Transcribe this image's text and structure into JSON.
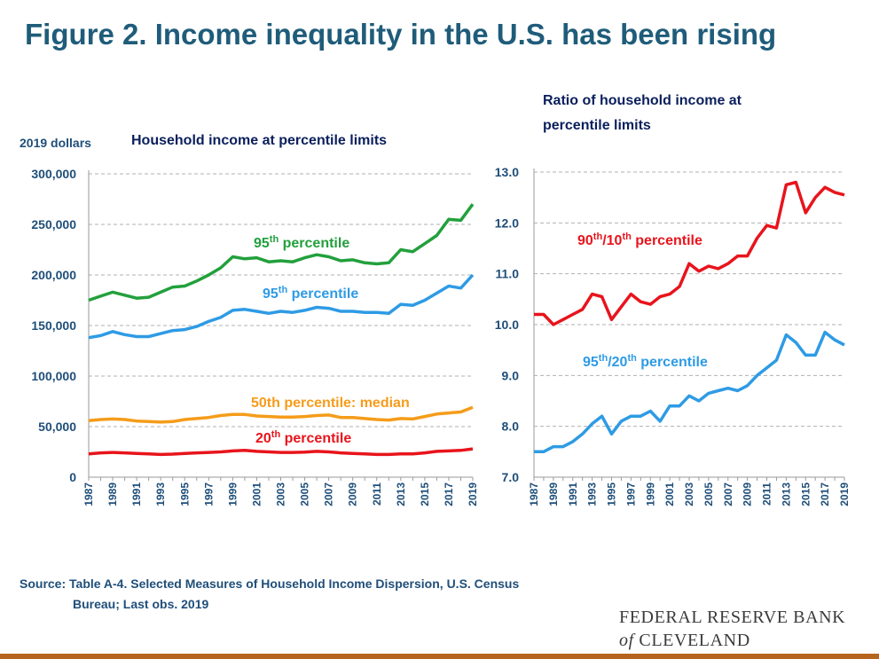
{
  "title": "Figure 2. Income inequality in the U.S. has been rising",
  "source_line1": "Source: Table A-4. Selected Measures of Household Income Dispersion, U.S. Census",
  "source_line2": "Bureau; Last obs. 2019",
  "logo": {
    "line1": "FEDERAL RESERVE BANK",
    "of": "of",
    "city": "CLEVELAND"
  },
  "chart_data": [
    {
      "type": "line",
      "title": "Household income at percentile limits",
      "ylabel": "2019 dollars",
      "ylim": [
        0,
        300000
      ],
      "yticks": [
        "0",
        "50,000",
        "100,000",
        "150,000",
        "200,000",
        "250,000",
        "300,000"
      ],
      "x": [
        1987,
        1988,
        1989,
        1990,
        1991,
        1992,
        1993,
        1994,
        1995,
        1996,
        1997,
        1998,
        1999,
        2000,
        2001,
        2002,
        2003,
        2004,
        2005,
        2006,
        2007,
        2008,
        2009,
        2010,
        2011,
        2012,
        2013,
        2014,
        2015,
        2016,
        2017,
        2018,
        2019
      ],
      "xticks": [
        "1987",
        "1989",
        "1991",
        "1993",
        "1995",
        "1997",
        "1999",
        "2001",
        "2003",
        "2005",
        "2007",
        "2009",
        "2011",
        "2013",
        "2015",
        "2017",
        "2019"
      ],
      "grid": true,
      "series": [
        {
          "name": "95th percentile",
          "label_main": "95",
          "label_sup": "th",
          "label_rest": " percentile",
          "color": "#22a03c",
          "values": [
            175000,
            179000,
            183000,
            180000,
            177000,
            178000,
            183000,
            188000,
            189000,
            194000,
            200000,
            207000,
            218000,
            216000,
            217000,
            213000,
            214000,
            213000,
            217000,
            220000,
            218000,
            214000,
            215000,
            212000,
            211000,
            212000,
            225000,
            223000,
            231000,
            239000,
            255000,
            254000,
            270000
          ]
        },
        {
          "name": "95th percentile",
          "label_main": "95",
          "label_sup": "th",
          "label_rest": " percentile",
          "color": "#2e9be5",
          "values": [
            138000,
            140000,
            144000,
            141000,
            139000,
            139000,
            142000,
            145000,
            146000,
            149000,
            154000,
            158000,
            165000,
            166000,
            164000,
            162000,
            164000,
            163000,
            165000,
            168000,
            167000,
            164000,
            164000,
            163000,
            163000,
            162000,
            171000,
            170000,
            175000,
            182000,
            189000,
            187000,
            200000
          ]
        },
        {
          "name": "50th percentile: median",
          "label_main": "50th percentile: median",
          "label_sup": "",
          "label_rest": "",
          "color": "#f59c1a",
          "values": [
            56000,
            57000,
            57500,
            57000,
            55500,
            55000,
            54500,
            55000,
            57000,
            58000,
            59000,
            61000,
            62000,
            62000,
            60500,
            60000,
            59500,
            59500,
            60000,
            61000,
            61500,
            59000,
            59000,
            58000,
            57000,
            56500,
            58000,
            57500,
            60000,
            62500,
            63500,
            64500,
            69000
          ]
        },
        {
          "name": "20th percentile",
          "label_main": "20",
          "label_sup": "th",
          "label_rest": " percentile",
          "color": "#e8141c",
          "values": [
            23000,
            24000,
            24500,
            24000,
            23500,
            23000,
            22500,
            22800,
            23500,
            24000,
            24500,
            25000,
            26000,
            26500,
            25500,
            25000,
            24500,
            24500,
            24800,
            25500,
            25000,
            24000,
            23500,
            23000,
            22500,
            22500,
            23000,
            23000,
            24000,
            25500,
            26000,
            26500,
            28000
          ]
        }
      ]
    },
    {
      "type": "line",
      "title": [
        "Ratio of household income at",
        "percentile limits"
      ],
      "ylim": [
        7.0,
        13.0
      ],
      "yticks": [
        "7.0",
        "8.0",
        "9.0",
        "10.0",
        "11.0",
        "12.0",
        "13.0"
      ],
      "x": [
        1987,
        1988,
        1989,
        1990,
        1991,
        1992,
        1993,
        1994,
        1995,
        1996,
        1997,
        1998,
        1999,
        2000,
        2001,
        2002,
        2003,
        2004,
        2005,
        2006,
        2007,
        2008,
        2009,
        2010,
        2011,
        2012,
        2013,
        2014,
        2015,
        2016,
        2017,
        2018,
        2019
      ],
      "xticks": [
        "1987",
        "1989",
        "1991",
        "1993",
        "1995",
        "1997",
        "1999",
        "2001",
        "2003",
        "2005",
        "2007",
        "2009",
        "2011",
        "2013",
        "2015",
        "2017",
        "2019"
      ],
      "grid": true,
      "series": [
        {
          "name": "90th/10th percentile",
          "label_main": "90",
          "label_sup": "th",
          "label_rest": "/10",
          "label_sup2": "th",
          "label_rest2": " percentile",
          "color": "#e8141c",
          "values": [
            10.2,
            10.2,
            10.0,
            10.1,
            10.2,
            10.3,
            10.6,
            10.55,
            10.1,
            10.35,
            10.6,
            10.45,
            10.4,
            10.55,
            10.6,
            10.75,
            11.2,
            11.05,
            11.15,
            11.1,
            11.2,
            11.35,
            11.35,
            11.7,
            11.95,
            11.9,
            12.75,
            12.8,
            12.2,
            12.5,
            12.7,
            12.6,
            12.55
          ]
        },
        {
          "name": "95th/20th percentile",
          "label_main": "95",
          "label_sup": "th",
          "label_rest": "/20",
          "label_sup2": "th",
          "label_rest2": " percentile",
          "color": "#2e9be5",
          "values": [
            7.5,
            7.5,
            7.6,
            7.6,
            7.7,
            7.85,
            8.05,
            8.2,
            7.85,
            8.1,
            8.2,
            8.2,
            8.3,
            8.1,
            8.4,
            8.4,
            8.6,
            8.5,
            8.65,
            8.7,
            8.75,
            8.7,
            8.8,
            9.0,
            9.15,
            9.3,
            9.8,
            9.65,
            9.4,
            9.4,
            9.85,
            9.7,
            9.6
          ]
        }
      ]
    }
  ]
}
